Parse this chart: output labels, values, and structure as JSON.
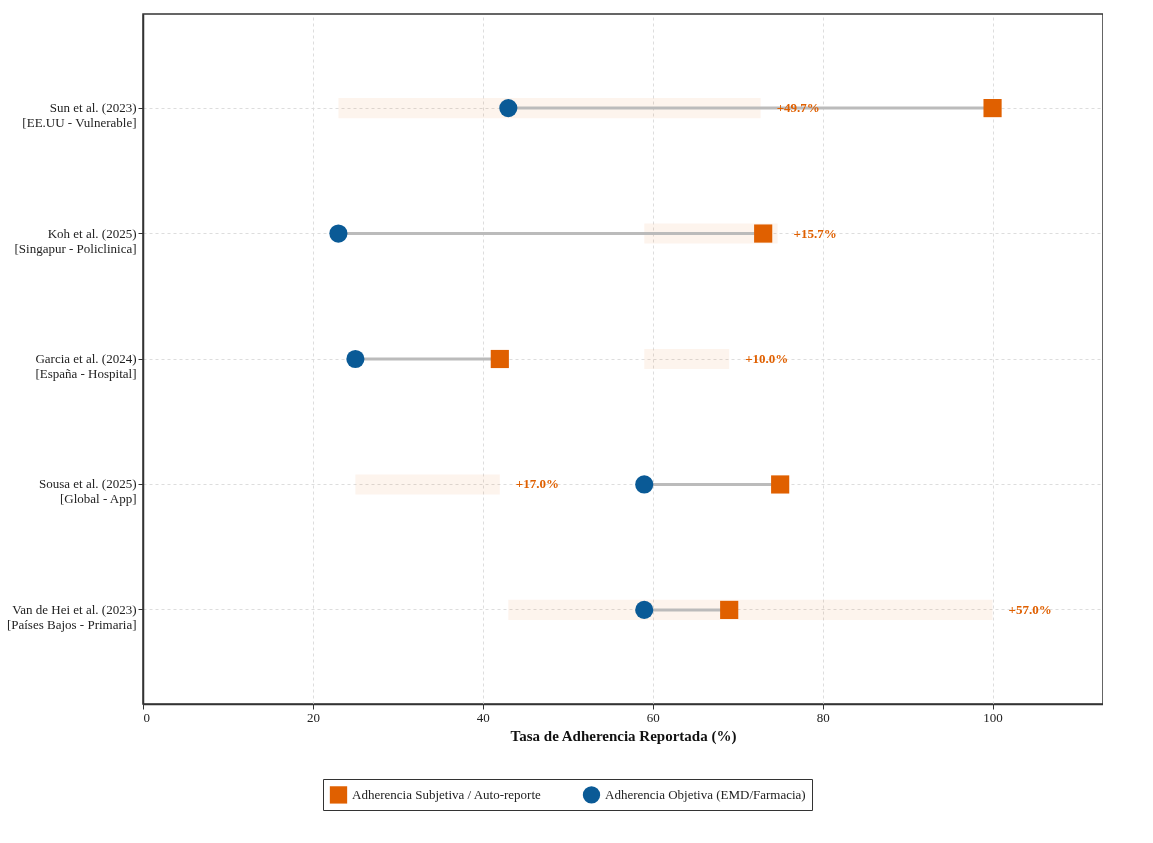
{
  "chart_data": {
    "type": "scatter",
    "orientation": "horizontal",
    "xlabel": "Tasa de Adherencia Reportada (%)",
    "categories": [
      "Sun et al. (2023)\n[EE.UU - Vulnerable]",
      "Koh et al. (2025)\n[Singapur - Policlinica]",
      "Garcia et al. (2024)\n[España - Hospital]",
      "Sousa et al. (2025)\n[Global - App]",
      "Van de Hei et al. (2023)\n[Países Bajos - Primaria]"
    ],
    "series": [
      {
        "type": "bar",
        "color": "#e06000",
        "base": [
          23,
          59,
          59,
          25,
          43
        ],
        "values": [
          49.7,
          15.7,
          10.0,
          17.0,
          57.0
        ],
        "value_labels": [
          "+49.7%",
          "+15.7%",
          "+10.0%",
          "+17.0%",
          "+57.0%"
        ]
      },
      {
        "name": "Adherencia Subjetiva / Auto-reporte",
        "color": "#e06000",
        "marker": "square",
        "values": [
          100,
          73,
          42,
          75,
          69
        ]
      },
      {
        "name": "Adherencia Objetiva (EMD/Farmacia)",
        "color": "#0a5a96",
        "marker": "circle",
        "values": [
          43,
          23,
          25,
          59,
          59
        ]
      }
    ],
    "xlim": [
      0,
      113
    ],
    "xticks": [
      0,
      20,
      40,
      60,
      80,
      100
    ],
    "grid": true,
    "legend": "bottom"
  }
}
